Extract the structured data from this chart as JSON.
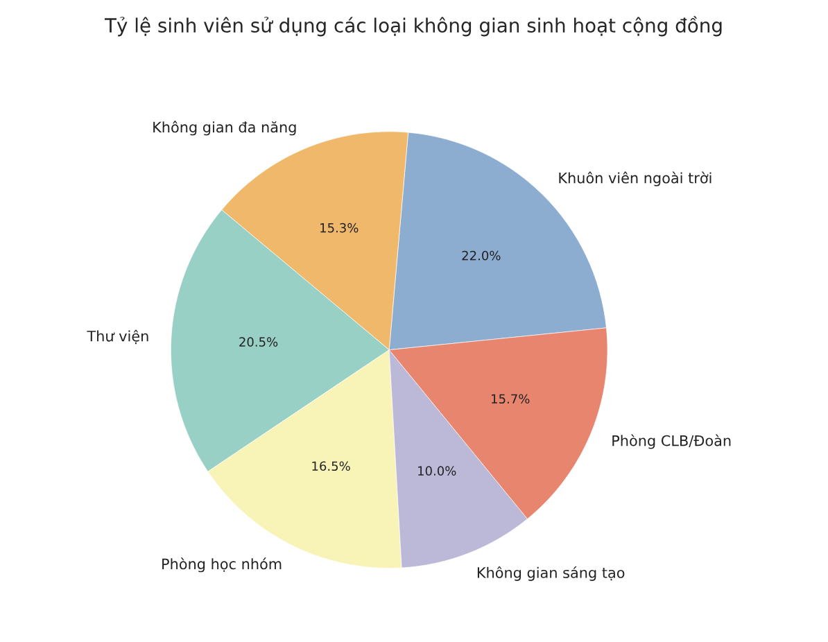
{
  "chart_data": {
    "type": "pie",
    "title": "Tỷ lệ sinh viên sử dụng các loại không gian sinh hoạt cộng đồng",
    "categories": [
      "Khuôn viên ngoài trời",
      "Không gian đa năng",
      "Thư viện",
      "Phòng học nhóm",
      "Không gian sáng tạo",
      "Phòng CLB/Đoàn"
    ],
    "values": [
      22.0,
      15.3,
      20.5,
      16.5,
      10.0,
      15.7
    ],
    "value_labels": [
      "22.0%",
      "15.3%",
      "20.5%",
      "16.5%",
      "10.0%",
      "15.7%"
    ],
    "colors": [
      "#8cacd0",
      "#f0b86a",
      "#99d0c5",
      "#f8f4b8",
      "#bcb8d8",
      "#e8856f"
    ]
  }
}
